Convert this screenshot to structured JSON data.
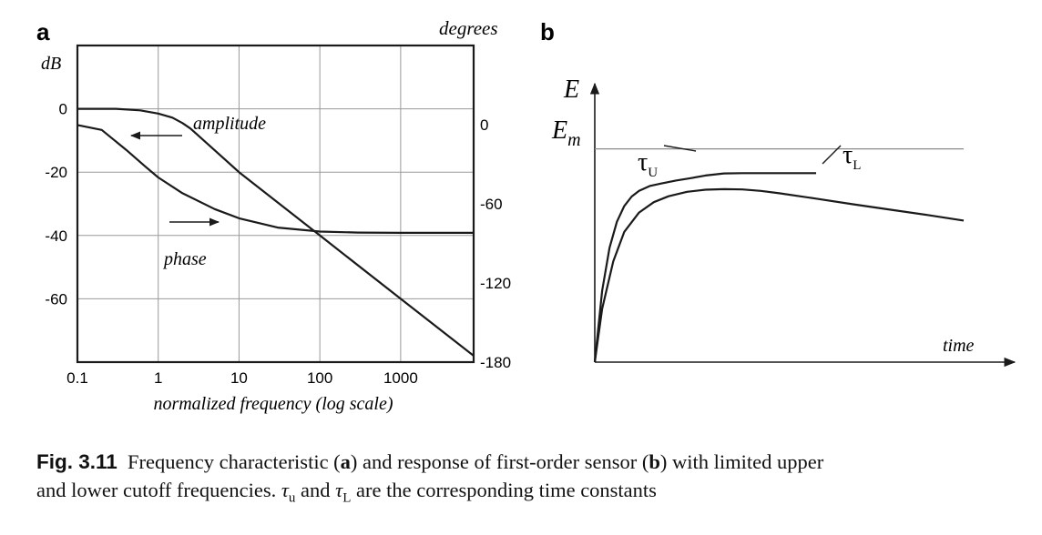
{
  "chart_data": [
    {
      "panel": "a",
      "type": "line",
      "title": "",
      "xlabel": "normalized frequency (log scale)",
      "xscale": "log",
      "xlim": [
        0.1,
        8000
      ],
      "xticks": [
        "0.1",
        "1",
        "10",
        "100",
        "1000"
      ],
      "left_axis": {
        "label": "dB",
        "ylim": [
          -80,
          20
        ],
        "ticks": [
          "0",
          "-20",
          "-40",
          "-60"
        ]
      },
      "right_axis": {
        "label": "degrees",
        "ylim": [
          -180,
          60
        ],
        "ticks": [
          "0",
          "-60",
          "-120",
          "-180"
        ]
      },
      "grid": true,
      "series": [
        {
          "name": "amplitude",
          "axis": "left",
          "arrow": "left",
          "x": [
            0.1,
            0.3,
            0.6,
            1,
            1.5,
            2,
            2.5,
            3,
            10,
            100,
            1000,
            8000
          ],
          "y": [
            0,
            0,
            -0.5,
            -1.5,
            -2.8,
            -4.5,
            -6.2,
            -8,
            -20,
            -40,
            -60,
            -78
          ]
        },
        {
          "name": "phase",
          "axis": "right",
          "arrow": "right",
          "x": [
            0.1,
            0.2,
            0.4,
            0.7,
            1,
            2,
            5,
            10,
            30,
            100,
            300,
            1000,
            8000
          ],
          "y": [
            -0.3,
            -4,
            -19,
            -32,
            -40,
            -52,
            -64,
            -71,
            -78,
            -81,
            -81.8,
            -82,
            -82
          ]
        }
      ]
    },
    {
      "panel": "b",
      "type": "line",
      "title": "",
      "xlabel": "time",
      "ylabel": "E",
      "reference_line": {
        "label": "Em",
        "label_main": "E",
        "label_sub": "m",
        "value": 0.72
      },
      "grid": false,
      "xlim": [
        0,
        1
      ],
      "ylim": [
        0,
        0.94
      ],
      "series": [
        {
          "name": "τU",
          "label_main": "τ",
          "label_sub": "U",
          "x": [
            0,
            0.02,
            0.04,
            0.06,
            0.08,
            0.1,
            0.12,
            0.15,
            0.18,
            0.22,
            0.26,
            0.3,
            0.35,
            0.4,
            0.5,
            0.6
          ],
          "y": [
            0,
            0.241,
            0.386,
            0.474,
            0.527,
            0.559,
            0.578,
            0.595,
            0.603,
            0.613,
            0.621,
            0.63,
            0.637,
            0.638,
            0.638,
            0.638
          ]
        },
        {
          "name": "τL",
          "label_main": "τ",
          "label_sub": "L",
          "x": [
            0,
            0.02,
            0.05,
            0.08,
            0.12,
            0.16,
            0.2,
            0.25,
            0.3,
            0.35,
            0.4,
            0.45,
            0.5,
            0.6,
            0.7,
            0.8,
            0.9,
            1.0
          ],
          "y": [
            0,
            0.18,
            0.34,
            0.44,
            0.505,
            0.54,
            0.56,
            0.575,
            0.582,
            0.584,
            0.583,
            0.578,
            0.57,
            0.552,
            0.533,
            0.515,
            0.497,
            0.478
          ]
        }
      ]
    }
  ],
  "caption": {
    "label": "Fig. 3.11",
    "text_1": "Frequency characteristic (",
    "bold_a": "a",
    "text_2": ") and response of first-order sensor (",
    "bold_b": "b",
    "text_3": ") with limited upper",
    "line2_text_1": "and lower cutoff frequencies.",
    "tau_u_main": "τ",
    "tau_u_sub": "u",
    "and_word": "and",
    "tau_l_main": "τ",
    "tau_l_sub": "L",
    "line2_text_2": "are the corresponding time constants"
  }
}
